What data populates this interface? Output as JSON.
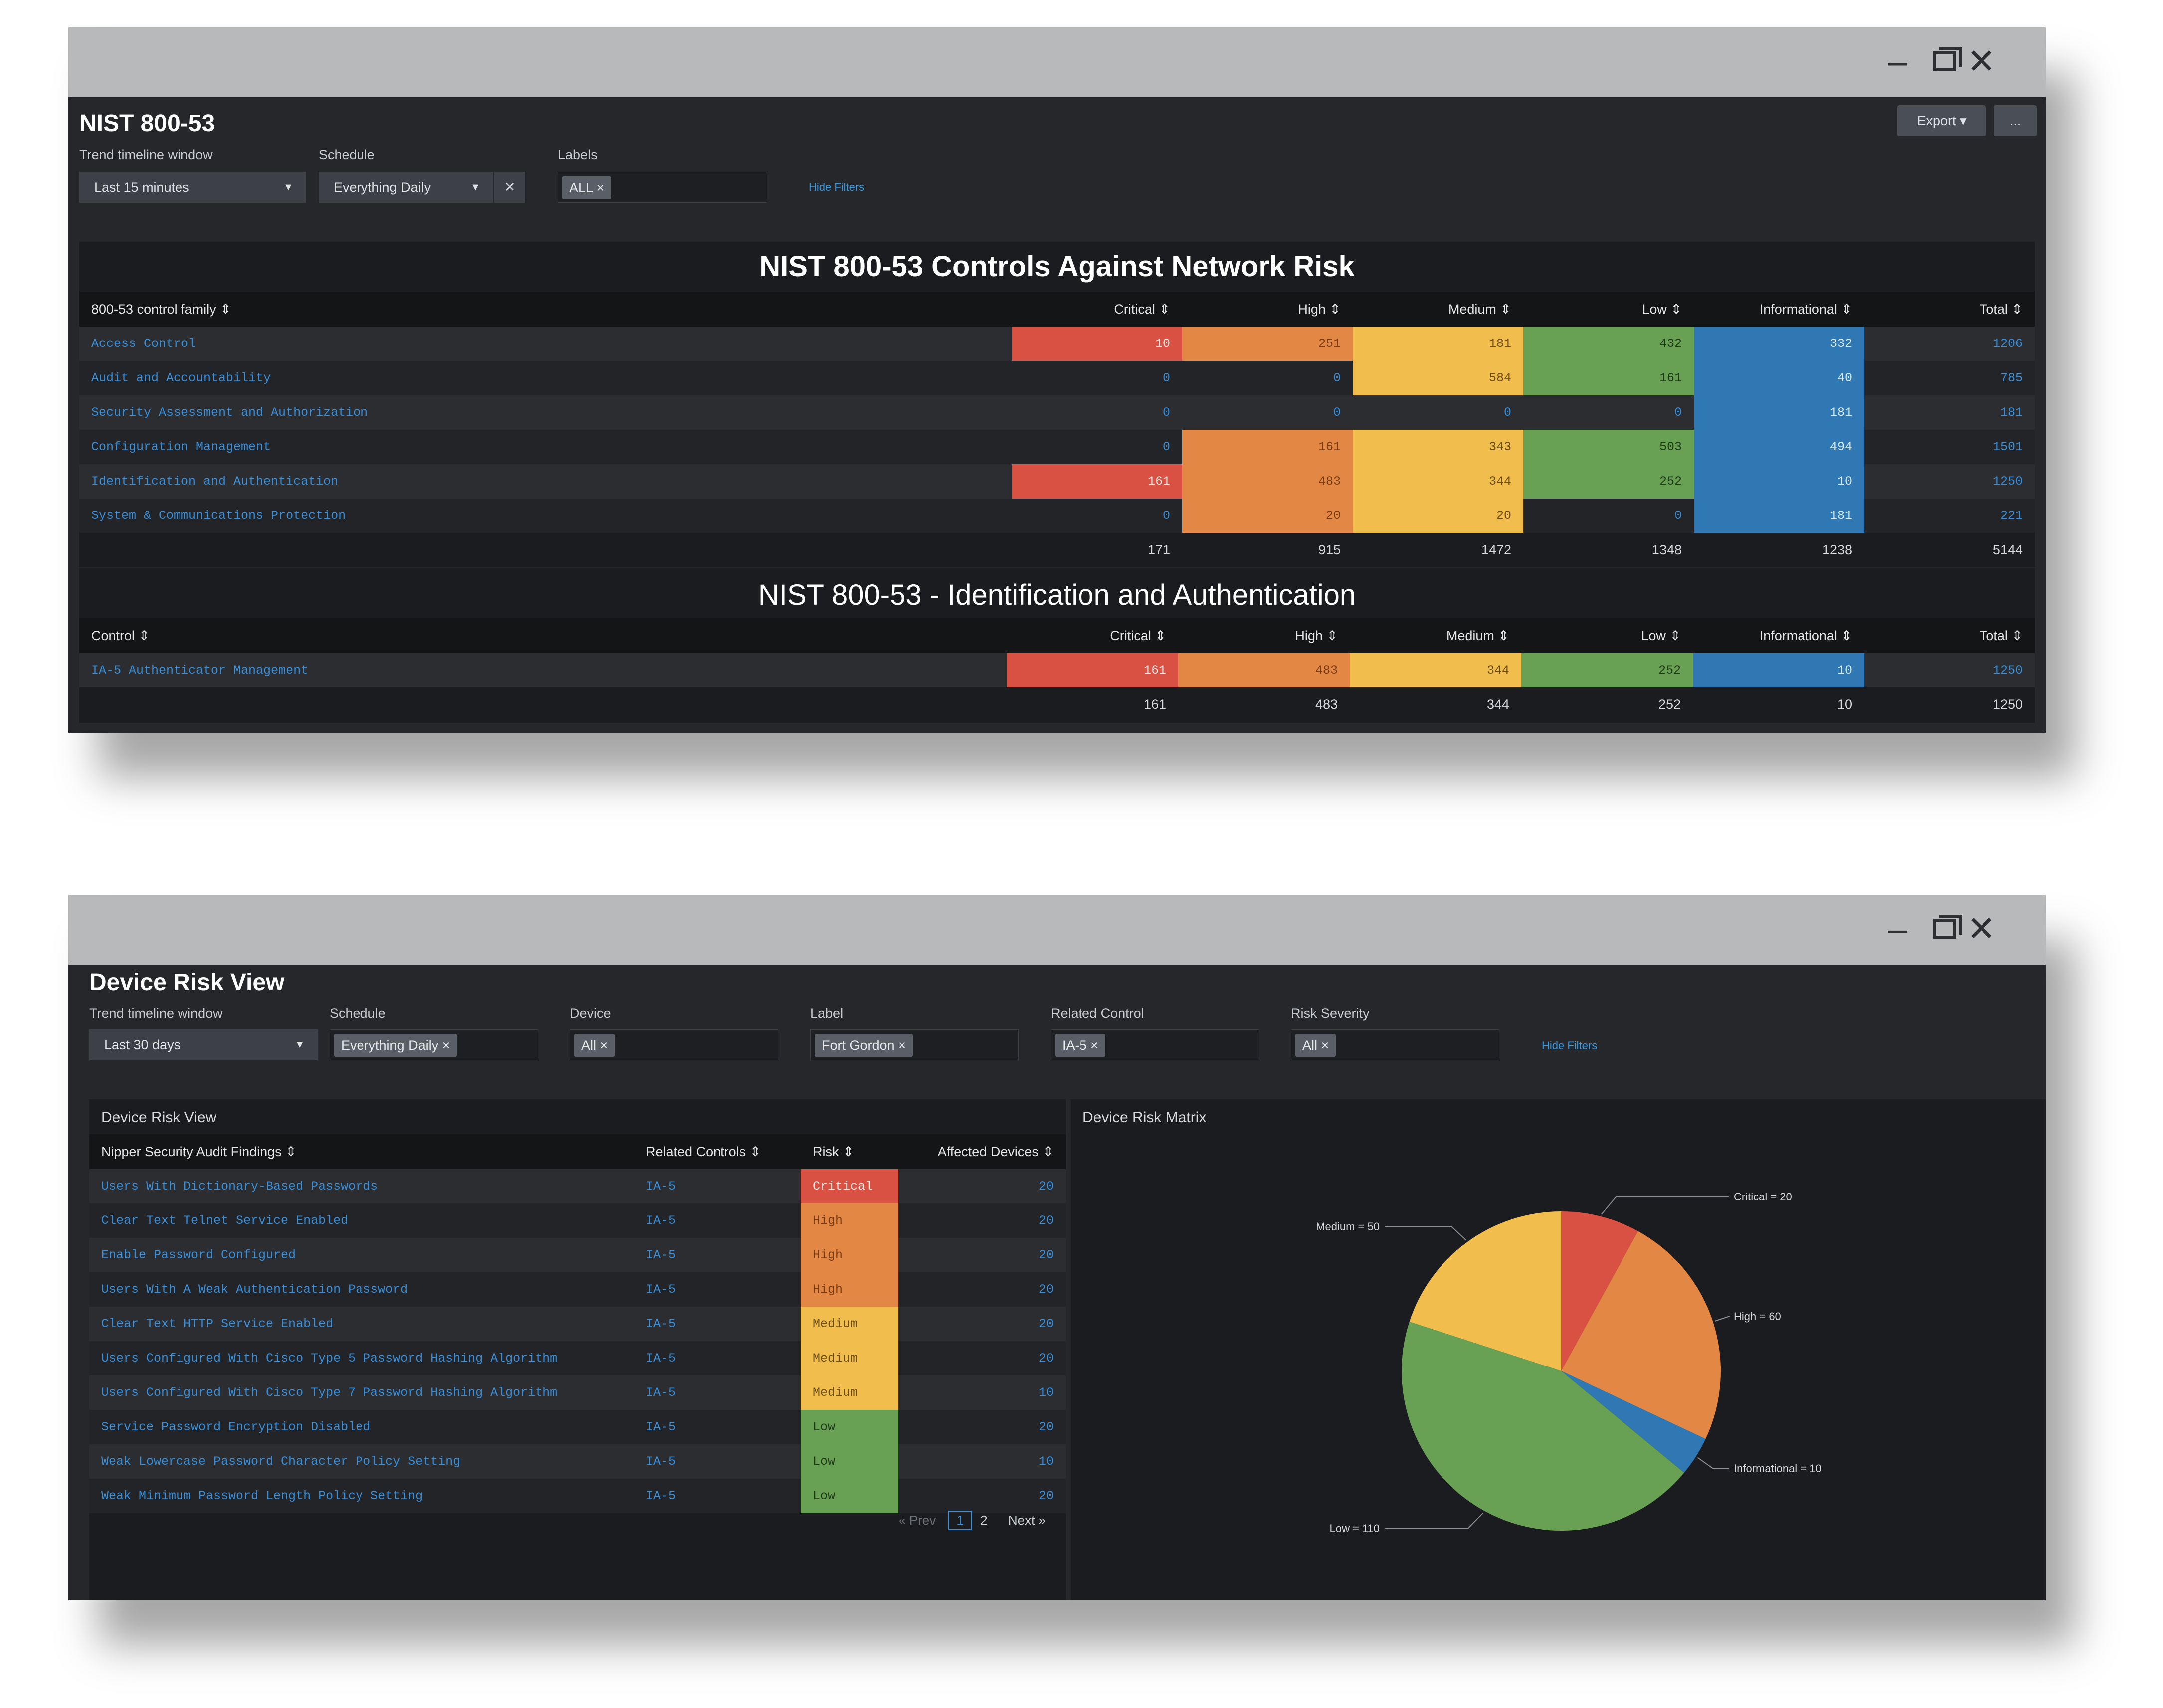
{
  "window_controls": {
    "minimize": "–",
    "close": "✕"
  },
  "nist": {
    "title": "NIST 800-53",
    "filters": {
      "trend_label": "Trend timeline window",
      "trend_value": "Last 15 minutes",
      "schedule_label": "Schedule",
      "schedule_value": "Everything Daily",
      "labels_label": "Labels",
      "labels_chip": "ALL",
      "hide_filters": "Hide Filters"
    },
    "export_label": "Export ▾",
    "more_label": "...",
    "controls_table": {
      "title": "NIST 800-53 Controls Against Network Risk",
      "headers": [
        "800-53 control family ⇕",
        "Critical ⇕",
        "High ⇕",
        "Medium ⇕",
        "Low ⇕",
        "Informational ⇕",
        "Total ⇕"
      ],
      "rows": [
        {
          "name": "Access Control",
          "critical": "10",
          "high": "251",
          "medium": "181",
          "low": "432",
          "info": "332",
          "total": "1206"
        },
        {
          "name": "Audit and Accountability",
          "critical": "0",
          "high": "0",
          "medium": "584",
          "low": "161",
          "info": "40",
          "total": "785"
        },
        {
          "name": "Security Assessment and Authorization",
          "critical": "0",
          "high": "0",
          "medium": "0",
          "low": "0",
          "info": "181",
          "total": "181"
        },
        {
          "name": "Configuration Management",
          "critical": "0",
          "high": "161",
          "medium": "343",
          "low": "503",
          "info": "494",
          "total": "1501"
        },
        {
          "name": "Identification and Authentication",
          "critical": "161",
          "high": "483",
          "medium": "344",
          "low": "252",
          "info": "10",
          "total": "1250"
        },
        {
          "name": "System & Communications Protection",
          "critical": "0",
          "high": "20",
          "medium": "20",
          "low": "0",
          "info": "181",
          "total": "221"
        }
      ],
      "totals": {
        "critical": "171",
        "high": "915",
        "medium": "1472",
        "low": "1348",
        "info": "1238",
        "total": "5144"
      }
    },
    "ia_table": {
      "title": "NIST 800-53 - Identification and Authentication",
      "headers": [
        "Control ⇕",
        "Critical ⇕",
        "High ⇕",
        "Medium ⇕",
        "Low ⇕",
        "Informational ⇕",
        "Total ⇕"
      ],
      "rows": [
        {
          "name": "IA-5 Authenticator Management",
          "critical": "161",
          "high": "483",
          "medium": "344",
          "low": "252",
          "info": "10",
          "total": "1250"
        }
      ],
      "totals": {
        "critical": "161",
        "high": "483",
        "medium": "344",
        "low": "252",
        "info": "10",
        "total": "1250"
      }
    }
  },
  "device": {
    "title": "Device Risk View",
    "filters": {
      "trend_label": "Trend timeline window",
      "trend_value": "Last 30 days",
      "schedule_label": "Schedule",
      "schedule_chip": "Everything Daily",
      "device_label": "Device",
      "device_chip": "All",
      "label_label": "Label",
      "label_chip": "Fort Gordon",
      "related_label": "Related Control",
      "related_chip": "IA-5",
      "severity_label": "Risk Severity",
      "severity_chip": "All",
      "hide_filters": "Hide Filters"
    },
    "findings": {
      "panel_title": "Device Risk View",
      "headers": [
        "Nipper Security Audit Findings ⇕",
        "Related Controls ⇕",
        "Risk ⇕",
        "Affected Devices ⇕"
      ],
      "rows": [
        {
          "finding": "Users With Dictionary-Based Passwords",
          "control": "IA-5",
          "risk": "Critical",
          "devices": "20"
        },
        {
          "finding": "Clear Text Telnet Service Enabled",
          "control": "IA-5",
          "risk": "High",
          "devices": "20"
        },
        {
          "finding": "Enable Password Configured",
          "control": "IA-5",
          "risk": "High",
          "devices": "20"
        },
        {
          "finding": "Users With A Weak Authentication Password",
          "control": "IA-5",
          "risk": "High",
          "devices": "20"
        },
        {
          "finding": "Clear Text HTTP Service Enabled",
          "control": "IA-5",
          "risk": "Medium",
          "devices": "20"
        },
        {
          "finding": "Users Configured With Cisco Type 5 Password Hashing Algorithm",
          "control": "IA-5",
          "risk": "Medium",
          "devices": "20"
        },
        {
          "finding": "Users Configured With Cisco Type 7 Password Hashing Algorithm",
          "control": "IA-5",
          "risk": "Medium",
          "devices": "10"
        },
        {
          "finding": "Service Password Encryption Disabled",
          "control": "IA-5",
          "risk": "Low",
          "devices": "20"
        },
        {
          "finding": "Weak Lowercase Password Character Policy Setting",
          "control": "IA-5",
          "risk": "Low",
          "devices": "10"
        },
        {
          "finding": "Weak Minimum Password Length Policy Setting",
          "control": "IA-5",
          "risk": "Low",
          "devices": "20"
        }
      ],
      "pager": {
        "prev": "« Prev",
        "page1": "1",
        "page2": "2",
        "next": "Next »"
      }
    },
    "matrix_title": "Device Risk Matrix"
  },
  "chart_data": {
    "type": "pie",
    "title": "Device Risk Matrix",
    "labels": [
      "Critical",
      "High",
      "Informational",
      "Low",
      "Medium"
    ],
    "values": [
      20,
      60,
      10,
      110,
      50
    ],
    "display_labels": [
      "Critical = 20",
      "High = 60",
      "Informational = 10",
      "Low = 110",
      "Medium = 50"
    ],
    "colors": [
      "#d95142",
      "#e38745",
      "#2f78b3",
      "#68a054",
      "#f1be4e"
    ]
  }
}
